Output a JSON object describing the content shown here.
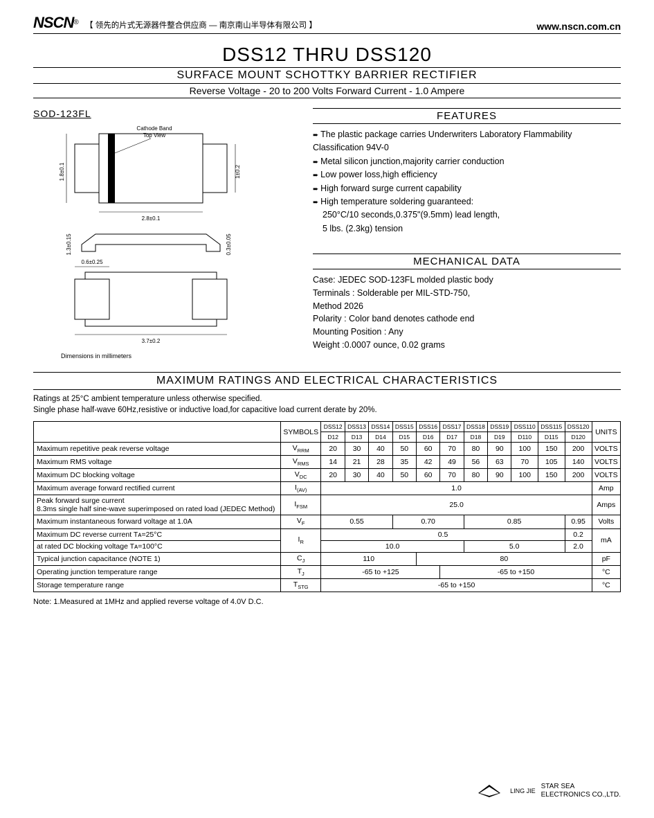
{
  "header": {
    "logo": "NSCN",
    "logo_sup": "®",
    "tagline": "【 领先的片式无源器件整合供应商 — 南京南山半导体有限公司 】",
    "url": "www.nscn.com.cn"
  },
  "title": {
    "main": "DSS12 THRU DSS120",
    "sub": "SURFACE MOUNT SCHOTTKY BARRIER RECTIFIER",
    "spec": "Reverse Voltage - 20 to 200 Volts     Forward Current - 1.0 Ampere"
  },
  "package": {
    "label": "SOD-123FL",
    "cathode_label": "Cathode Band\nTop View",
    "dims": {
      "h": "1.8±0.1",
      "w": "2.8±0.1",
      "lead_h": "1±0.2",
      "side_h": "1.3±0.15",
      "side_t": "0.3±0.05",
      "pad_w": "0.6±0.25",
      "foot_w": "3.7±0.2"
    },
    "note": "Dimensions in millimeters"
  },
  "features": {
    "head": "FEATURES",
    "items": [
      "The plastic package carries Underwriters Laboratory Flammability Classification 94V-0",
      "Metal silicon junction,majority carrier conduction",
      "Low power loss,high efficiency",
      "High forward surge current capability",
      "High temperature soldering guaranteed:"
    ],
    "extra": "250°C/10 seconds,0.375\"(9.5mm) lead length,\n5 lbs. (2.3kg) tension"
  },
  "mechanical": {
    "head": "MECHANICAL DATA",
    "lines": "Case: JEDEC SOD-123FL molded plastic body\nTerminals : Solderable per MIL-STD-750,\nMethod 2026\nPolarity : Color band denotes cathode end\nMounting Position : Any\nWeight :0.0007 ounce, 0.02 grams"
  },
  "ratings": {
    "head": "MAXIMUM RATINGS AND ELECTRICAL CHARACTERISTICS",
    "note": "Ratings at 25°C ambient temperature unless otherwise specified.\nSingle phase half-wave 60Hz,resistive or inductive load,for capacitive load current derate by 20%.",
    "col_sym": "SYMBOLS",
    "col_units": "UNITS",
    "parts_top": [
      "DSS12",
      "DSS13",
      "DSS14",
      "DSS15",
      "DSS16",
      "DSS17",
      "DSS18",
      "DSS19",
      "DSS110",
      "DSS115",
      "DSS120"
    ],
    "parts_bot": [
      "D12",
      "D13",
      "D14",
      "D15",
      "D16",
      "D17",
      "D18",
      "D19",
      "D110",
      "D115",
      "D120"
    ],
    "rows": [
      {
        "param": "Maximum repetitive peak reverse voltage",
        "sym": "V",
        "sub": "RRM",
        "vals": [
          "20",
          "30",
          "40",
          "50",
          "60",
          "70",
          "80",
          "90",
          "100",
          "150",
          "200"
        ],
        "unit": "VOLTS"
      },
      {
        "param": "Maximum RMS voltage",
        "sym": "V",
        "sub": "RMS",
        "vals": [
          "14",
          "21",
          "28",
          "35",
          "42",
          "49",
          "56",
          "63",
          "70",
          "105",
          "140"
        ],
        "unit": "VOLTS"
      },
      {
        "param": "Maximum DC blocking voltage",
        "sym": "V",
        "sub": "DC",
        "vals": [
          "20",
          "30",
          "40",
          "50",
          "60",
          "70",
          "80",
          "90",
          "100",
          "150",
          "200"
        ],
        "unit": "VOLTS"
      }
    ],
    "iav": {
      "param": "Maximum average forward rectified current",
      "sym": "I",
      "sub": "(AV)",
      "val": "1.0",
      "unit": "Amp"
    },
    "ifsm": {
      "param": "Peak forward surge current\n8.3ms single half sine-wave superimposed on rated load (JEDEC Method)",
      "sym": "I",
      "sub": "FSM",
      "val": "25.0",
      "unit": "Amps"
    },
    "vf": {
      "param": "Maximum instantaneous forward voltage at 1.0A",
      "sym": "V",
      "sub": "F",
      "spans": [
        {
          "c": 3,
          "v": "0.55"
        },
        {
          "c": 3,
          "v": "0.70"
        },
        {
          "c": 4,
          "v": "0.85"
        },
        {
          "c": 1,
          "v": "0.95"
        }
      ],
      "unit": "Volts"
    },
    "ir": {
      "param1": "Maximum DC reverse current        Tᴀ=25°C",
      "param2": "at rated DC blocking voltage        Tᴀ=100°C",
      "sym": "I",
      "sub": "R",
      "r1": [
        {
          "c": 10,
          "v": "0.5"
        },
        {
          "c": 1,
          "v": "0.2"
        }
      ],
      "r2": [
        {
          "c": 6,
          "v": "10.0"
        },
        {
          "c": 4,
          "v": "5.0"
        },
        {
          "c": 1,
          "v": "2.0"
        }
      ],
      "unit": "mA"
    },
    "cj": {
      "param": "Typical junction capacitance (NOTE 1)",
      "sym": "C",
      "sub": "J",
      "spans": [
        {
          "c": 4,
          "v": "110"
        },
        {
          "c": 7,
          "v": "80"
        }
      ],
      "unit": "pF"
    },
    "tj": {
      "param": "Operating junction temperature range",
      "sym": "T",
      "sub": "J",
      "spans": [
        {
          "c": 5,
          "v": "-65 to +125"
        },
        {
          "c": 6,
          "v": "-65 to +150"
        }
      ],
      "unit": "°C"
    },
    "tstg": {
      "param": "Storage temperature range",
      "sym": "T",
      "sub": "STG",
      "val": "-65 to +150",
      "unit": "°C"
    },
    "footnote": "Note: 1.Measured at 1MHz and applied reverse voltage of 4.0V D.C."
  },
  "footer": {
    "mark": "LING JIE",
    "co": "STAR SEA\nELECTRONICS CO.,LTD."
  },
  "colors": {
    "text": "#000000",
    "line": "#000000",
    "background": "#ffffff",
    "fill_light": "#eeeeee"
  }
}
